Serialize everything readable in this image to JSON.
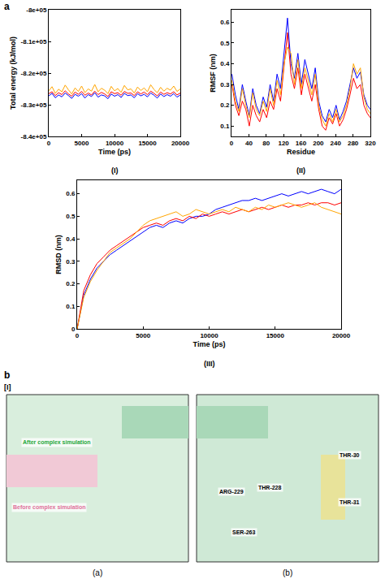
{
  "figure": {
    "panel_labels": [
      "a",
      "b"
    ],
    "panel_b": {
      "label": "[I]",
      "images": [
        {
          "caption": "(a)",
          "labels": [
            "After complex simulation",
            "Before complex simulation"
          ]
        },
        {
          "caption": "(b)",
          "labels": [
            "ARG-229",
            "THR-228",
            "SER-263",
            "THR-30",
            "THR-31"
          ]
        }
      ]
    }
  },
  "chart_data": [
    {
      "type": "line",
      "caption": "(I)",
      "x_label": "Time (ps)",
      "y_label": "Total energy (kJ/mol)",
      "grid": false,
      "x": [
        0,
        500,
        1000,
        1500,
        2000,
        2500,
        3000,
        3500,
        4000,
        4500,
        5000,
        5500,
        6000,
        6500,
        7000,
        7500,
        8000,
        8500,
        9000,
        9500,
        10000,
        10500,
        11000,
        11500,
        12000,
        12500,
        13000,
        13500,
        14000,
        14500,
        15000,
        15500,
        16000,
        16500,
        17000,
        17500,
        18000,
        18500,
        19000,
        19500,
        20000
      ],
      "xlim": [
        0,
        20000
      ],
      "xticks": [
        0,
        5000,
        10000,
        15000,
        20000
      ],
      "ylim": [
        -840000,
        -800000
      ],
      "yticks": [
        {
          "value": -840000,
          "label": "-8.4e+05"
        },
        {
          "value": -830000,
          "label": "-8.3e+05"
        },
        {
          "value": -820000,
          "label": "-8.2e+05"
        },
        {
          "value": -810000,
          "label": "-8.1e+05"
        },
        {
          "value": -800000,
          "label": "-8e+05"
        }
      ],
      "series": [
        {
          "color": "#0000ff",
          "values": [
            -827200,
            -826400,
            -827800,
            -826900,
            -827500,
            -826300,
            -827100,
            -828000,
            -826700,
            -827300,
            -826500,
            -827900,
            -826800,
            -827400,
            -826200,
            -827600,
            -826900,
            -827200,
            -828100,
            -826600,
            -827300,
            -826800,
            -827700,
            -826400,
            -827100,
            -826900,
            -827800,
            -826500,
            -827200,
            -826700,
            -827500,
            -826300,
            -827000,
            -827900,
            -826600,
            -827400,
            -826800,
            -827300,
            -826500,
            -827600,
            -826900
          ]
        },
        {
          "color": "#ff0000",
          "values": [
            -826500,
            -825900,
            -827100,
            -826200,
            -826800,
            -825600,
            -826600,
            -827300,
            -826000,
            -826700,
            -825800,
            -827000,
            -826300,
            -826900,
            -825700,
            -826800,
            -826100,
            -826600,
            -827400,
            -825900,
            -826500,
            -826200,
            -827000,
            -825800,
            -826400,
            -826300,
            -827100,
            -825900,
            -826600,
            -826000,
            -826800,
            -825700,
            -826400,
            -827200,
            -826000,
            -826700,
            -826200,
            -826600,
            -825900,
            -826900,
            -826300
          ]
        },
        {
          "color": "#ffa500",
          "values": [
            -825600,
            -824300,
            -826400,
            -825100,
            -825900,
            -823800,
            -825300,
            -826600,
            -824700,
            -825800,
            -824100,
            -826200,
            -825000,
            -825700,
            -823600,
            -825900,
            -824800,
            -825400,
            -826500,
            -824200,
            -825600,
            -824900,
            -826100,
            -823900,
            -825300,
            -825000,
            -826300,
            -824400,
            -825500,
            -824700,
            -825900,
            -823700,
            -825200,
            -826200,
            -824500,
            -825700,
            -824800,
            -825400,
            -824100,
            -825800,
            -825000
          ]
        }
      ]
    },
    {
      "type": "line",
      "caption": "(II)",
      "x_label": "Residue",
      "y_label": "RMSF (nm)",
      "grid": false,
      "x": [
        1,
        9,
        17,
        25,
        33,
        41,
        49,
        57,
        65,
        73,
        81,
        89,
        97,
        105,
        113,
        121,
        129,
        137,
        145,
        153,
        161,
        169,
        177,
        185,
        193,
        201,
        209,
        217,
        225,
        233,
        241,
        249,
        257,
        265,
        273,
        281,
        289,
        297,
        305,
        313,
        320
      ],
      "xlim": [
        0,
        320
      ],
      "xticks": [
        0,
        40,
        80,
        120,
        160,
        200,
        240,
        280,
        320
      ],
      "ylim": [
        0.05,
        0.66
      ],
      "yticks": [
        0.1,
        0.2,
        0.3,
        0.4,
        0.5,
        0.6
      ],
      "series": [
        {
          "color": "#0000ff",
          "values": [
            0.35,
            0.25,
            0.18,
            0.3,
            0.22,
            0.15,
            0.28,
            0.2,
            0.16,
            0.24,
            0.19,
            0.3,
            0.22,
            0.35,
            0.28,
            0.45,
            0.62,
            0.4,
            0.33,
            0.45,
            0.3,
            0.42,
            0.35,
            0.28,
            0.38,
            0.22,
            0.15,
            0.12,
            0.18,
            0.14,
            0.2,
            0.13,
            0.17,
            0.22,
            0.3,
            0.38,
            0.33,
            0.36,
            0.25,
            0.2,
            0.18
          ]
        },
        {
          "color": "#ff0000",
          "values": [
            0.3,
            0.2,
            0.15,
            0.22,
            0.18,
            0.1,
            0.2,
            0.15,
            0.12,
            0.18,
            0.14,
            0.22,
            0.18,
            0.28,
            0.22,
            0.38,
            0.55,
            0.35,
            0.28,
            0.38,
            0.25,
            0.35,
            0.28,
            0.22,
            0.3,
            0.18,
            0.1,
            0.08,
            0.14,
            0.11,
            0.16,
            0.1,
            0.13,
            0.18,
            0.25,
            0.33,
            0.28,
            0.3,
            0.2,
            0.16,
            0.14
          ]
        },
        {
          "color": "#ffa500",
          "values": [
            0.32,
            0.22,
            0.17,
            0.28,
            0.2,
            0.14,
            0.26,
            0.18,
            0.15,
            0.22,
            0.17,
            0.28,
            0.2,
            0.32,
            0.25,
            0.4,
            0.48,
            0.45,
            0.3,
            0.42,
            0.28,
            0.38,
            0.32,
            0.25,
            0.35,
            0.2,
            0.13,
            0.1,
            0.16,
            0.12,
            0.18,
            0.12,
            0.15,
            0.2,
            0.28,
            0.4,
            0.35,
            0.38,
            0.24,
            0.18,
            0.16
          ]
        }
      ]
    },
    {
      "type": "line",
      "caption": "(III)",
      "x_label": "Time (ps)",
      "y_label": "RMSD (nm)",
      "grid": false,
      "x": [
        0,
        500,
        1000,
        1500,
        2000,
        2500,
        3000,
        3500,
        4000,
        4500,
        5000,
        5500,
        6000,
        6500,
        7000,
        7500,
        8000,
        8500,
        9000,
        9500,
        10000,
        10500,
        11000,
        11500,
        12000,
        12500,
        13000,
        13500,
        14000,
        14500,
        15000,
        15500,
        16000,
        16500,
        17000,
        17500,
        18000,
        18500,
        19000,
        19500,
        20000
      ],
      "xlim": [
        0,
        20000
      ],
      "xticks": [
        0,
        5000,
        10000,
        15000,
        20000
      ],
      "ylim": [
        0,
        0.66
      ],
      "yticks": [
        0,
        0.1,
        0.2,
        0.3,
        0.4,
        0.5,
        0.6
      ],
      "series": [
        {
          "color": "#0000ff",
          "values": [
            0,
            0.15,
            0.22,
            0.27,
            0.3,
            0.33,
            0.35,
            0.37,
            0.39,
            0.41,
            0.43,
            0.45,
            0.46,
            0.45,
            0.47,
            0.48,
            0.47,
            0.49,
            0.5,
            0.5,
            0.51,
            0.53,
            0.54,
            0.55,
            0.56,
            0.57,
            0.57,
            0.58,
            0.57,
            0.58,
            0.59,
            0.6,
            0.59,
            0.6,
            0.61,
            0.6,
            0.61,
            0.62,
            0.61,
            0.6,
            0.62
          ]
        },
        {
          "color": "#ff0000",
          "values": [
            0,
            0.17,
            0.24,
            0.29,
            0.32,
            0.35,
            0.37,
            0.39,
            0.41,
            0.43,
            0.45,
            0.46,
            0.47,
            0.46,
            0.48,
            0.49,
            0.48,
            0.5,
            0.49,
            0.51,
            0.5,
            0.51,
            0.52,
            0.51,
            0.52,
            0.53,
            0.52,
            0.53,
            0.54,
            0.53,
            0.54,
            0.55,
            0.54,
            0.55,
            0.55,
            0.56,
            0.55,
            0.56,
            0.56,
            0.55,
            0.56
          ]
        },
        {
          "color": "#ffa500",
          "values": [
            0,
            0.14,
            0.21,
            0.26,
            0.3,
            0.34,
            0.36,
            0.38,
            0.4,
            0.43,
            0.46,
            0.48,
            0.49,
            0.5,
            0.51,
            0.52,
            0.5,
            0.51,
            0.53,
            0.52,
            0.51,
            0.52,
            0.53,
            0.52,
            0.54,
            0.53,
            0.52,
            0.54,
            0.53,
            0.55,
            0.54,
            0.55,
            0.56,
            0.55,
            0.54,
            0.55,
            0.56,
            0.54,
            0.53,
            0.52,
            0.51
          ]
        }
      ]
    }
  ]
}
